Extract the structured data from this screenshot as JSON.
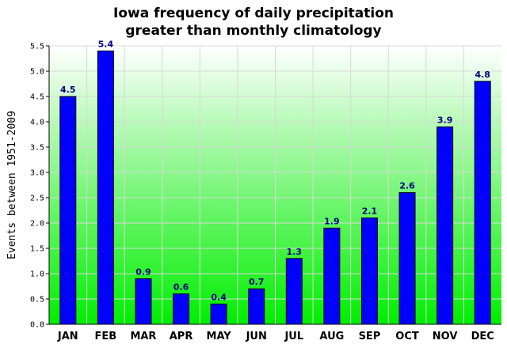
{
  "chart_data": {
    "type": "bar",
    "title_lines": [
      "Iowa frequency of daily precipitation",
      "greater than monthly climatology"
    ],
    "ylabel": "Events between 1951-2009",
    "xlabel": "",
    "categories": [
      "JAN",
      "FEB",
      "MAR",
      "APR",
      "MAY",
      "JUN",
      "JUL",
      "AUG",
      "SEP",
      "OCT",
      "NOV",
      "DEC"
    ],
    "values": [
      4.5,
      5.4,
      0.9,
      0.6,
      0.4,
      0.7,
      1.3,
      1.9,
      2.1,
      2.6,
      3.9,
      4.8
    ],
    "value_labels": [
      "4.5",
      "5.4",
      "0.9",
      "0.6",
      "0.4",
      "0.7",
      "1.3",
      "1.9",
      "2.1",
      "2.6",
      "3.9",
      "4.8"
    ],
    "ylim": [
      0,
      5.5
    ],
    "yticks": [
      "0.0",
      "0.5",
      "1.0",
      "1.5",
      "2.0",
      "2.5",
      "3.0",
      "3.5",
      "4.0",
      "4.5",
      "5.0",
      "5.5"
    ],
    "grid": true,
    "colors": {
      "bar_fill": "#0000ff",
      "bar_stroke": "#000000",
      "label": "#000080",
      "background_top": "#ffffff",
      "background_bottom": "#00ee00",
      "grid": "#d8d8d8"
    }
  }
}
